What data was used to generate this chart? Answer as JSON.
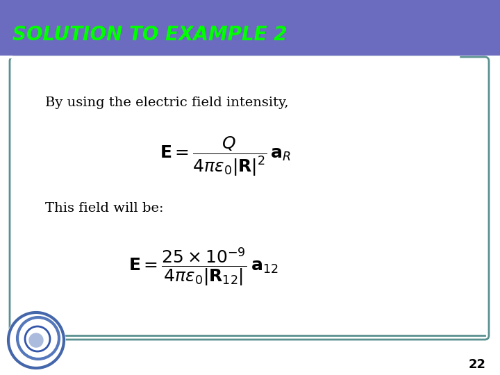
{
  "title": "SOLUTION TO EXAMPLE 2",
  "title_bg_color": "#6B6BBF",
  "title_text_color": "#00FF00",
  "body_bg_color": "#FFFFFF",
  "slide_bg_color": "#FFFFFF",
  "border_color": "#5B9090",
  "separator_color": "#FFFFFF",
  "text1": "By using the electric field intensity,",
  "text2": "This field will be:",
  "page_number": "22",
  "figsize": [
    7.2,
    5.4
  ],
  "dpi": 100
}
